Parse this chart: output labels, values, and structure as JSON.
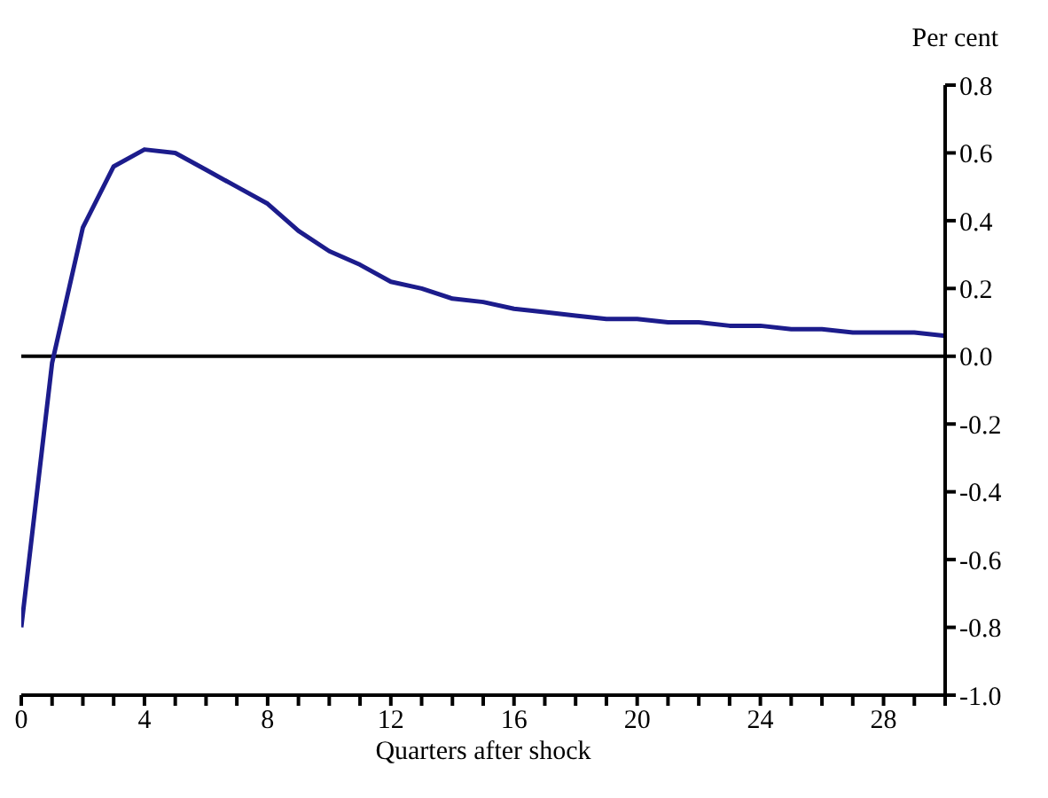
{
  "chart_data": {
    "type": "line",
    "xlabel": "Quarters after shock",
    "ylabel": "Per cent",
    "x": [
      0,
      1,
      2,
      3,
      4,
      5,
      6,
      7,
      8,
      9,
      10,
      11,
      12,
      13,
      14,
      15,
      16,
      17,
      18,
      19,
      20,
      21,
      22,
      23,
      24,
      25,
      26,
      27,
      28,
      29,
      30
    ],
    "series": [
      {
        "color": "#1c1c8c",
        "values": [
          -0.8,
          -0.02,
          0.38,
          0.56,
          0.61,
          0.6,
          0.55,
          0.5,
          0.45,
          0.37,
          0.31,
          0.27,
          0.22,
          0.2,
          0.17,
          0.16,
          0.14,
          0.13,
          0.12,
          0.11,
          0.11,
          0.1,
          0.1,
          0.09,
          0.09,
          0.08,
          0.08,
          0.07,
          0.07,
          0.07,
          0.06
        ]
      }
    ],
    "xlim": [
      0,
      30
    ],
    "xticks": [
      0,
      {
        "value": 1,
        "label": null
      },
      {
        "value": 2,
        "label": null
      },
      {
        "value": 3,
        "label": null
      },
      4,
      {
        "value": 5,
        "label": null
      },
      {
        "value": 6,
        "label": null
      },
      {
        "value": 7,
        "label": null
      },
      8,
      {
        "value": 9,
        "label": null
      },
      {
        "value": 10,
        "label": null
      },
      {
        "value": 11,
        "label": null
      },
      12,
      {
        "value": 13,
        "label": null
      },
      {
        "value": 14,
        "label": null
      },
      {
        "value": 15,
        "label": null
      },
      16,
      {
        "value": 17,
        "label": null
      },
      {
        "value": 18,
        "label": null
      },
      {
        "value": 19,
        "label": null
      },
      20,
      {
        "value": 21,
        "label": null
      },
      {
        "value": 22,
        "label": null
      },
      {
        "value": 23,
        "label": null
      },
      24,
      {
        "value": 25,
        "label": null
      },
      {
        "value": 26,
        "label": null
      },
      {
        "value": 27,
        "label": null
      },
      28,
      {
        "value": 29,
        "label": null
      },
      {
        "value": 30,
        "label": null
      }
    ],
    "ylim": [
      -1.0,
      0.8
    ],
    "yticks": [
      {
        "value": -1.0,
        "label": "-1.0"
      },
      -0.8,
      -0.6,
      -0.4,
      -0.2,
      {
        "value": 0,
        "label": "0.0"
      },
      0.2,
      0.4,
      0.6,
      0.8
    ],
    "ref_lines": [
      {
        "axis": "y",
        "value": 0,
        "color": "#000000"
      }
    ],
    "grid": false,
    "legend": false,
    "marker": "none",
    "line_style": "solid"
  }
}
